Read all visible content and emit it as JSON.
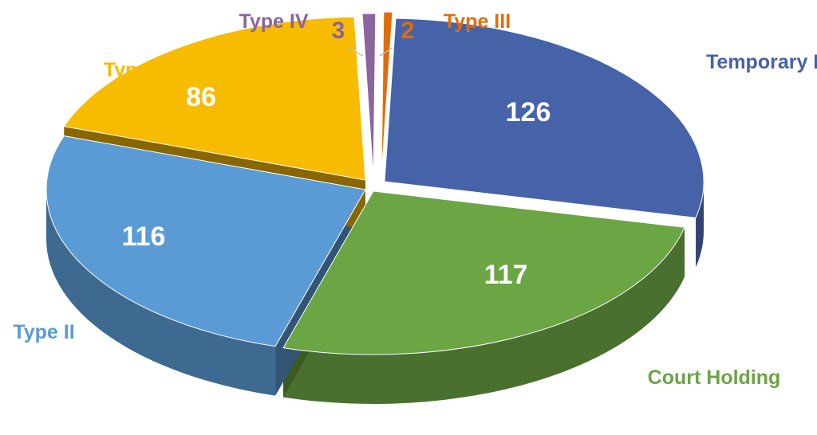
{
  "chart_data": {
    "type": "pie",
    "style": "3d-exploded",
    "title": "",
    "legend": "none",
    "slices": [
      {
        "category": "Temporary Holding",
        "value": 126,
        "color": "#4662A8"
      },
      {
        "category": "Court Holding",
        "value": 117,
        "color": "#6BA544"
      },
      {
        "category": "Type II",
        "value": 116,
        "color": "#5B9BD5"
      },
      {
        "category": "Type I",
        "value": 86,
        "color": "#F7BB00"
      },
      {
        "category": "Type IV",
        "value": 3,
        "color": "#8B64A0"
      },
      {
        "category": "Type III",
        "value": 2,
        "color": "#E36C0A"
      }
    ]
  }
}
